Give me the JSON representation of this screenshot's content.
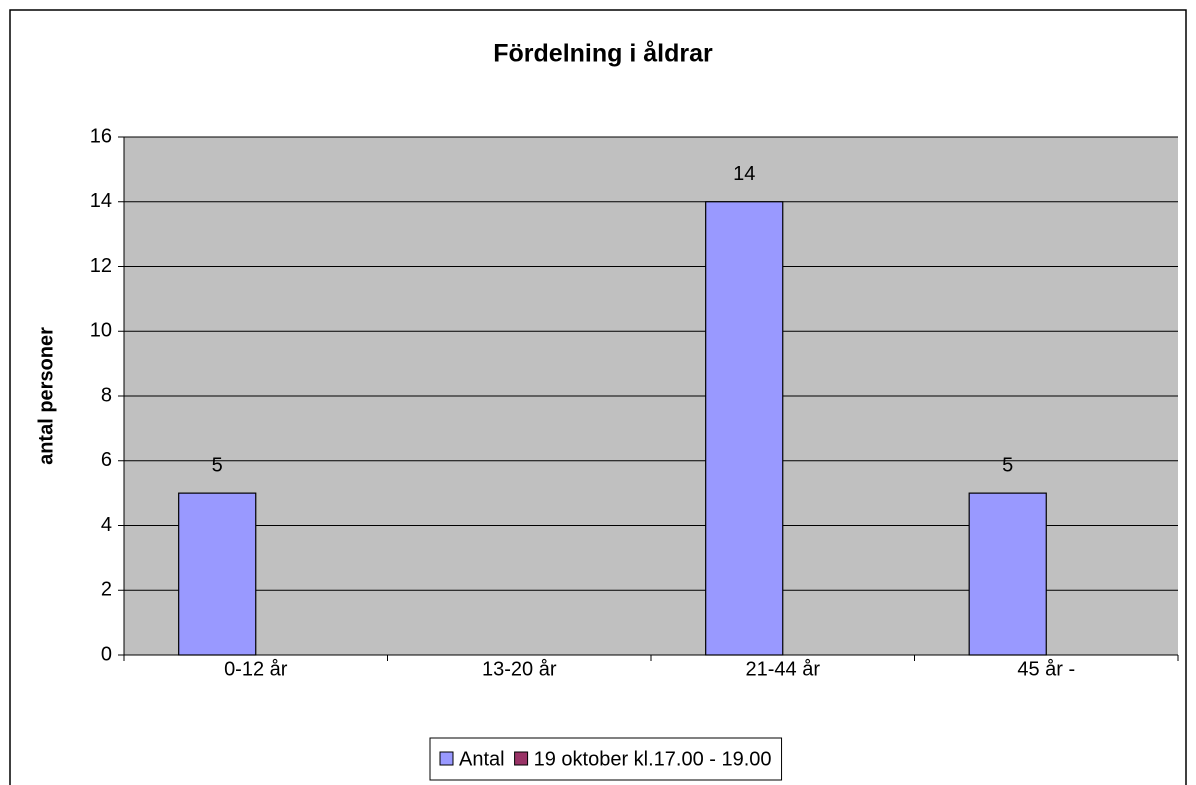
{
  "chart_data": {
    "type": "bar",
    "title": "Fördelning i åldrar",
    "y_label": "antal personer",
    "categories": [
      "0-12 år",
      "13-20 år",
      "21-44 år",
      "45 år -"
    ],
    "series": [
      {
        "name": "Antal",
        "color": "#9999ff",
        "values": [
          5,
          null,
          14,
          5
        ]
      },
      {
        "name": "19 oktober kl.17.00 - 19.00",
        "color": "#993366",
        "values": [
          null,
          null,
          null,
          null
        ]
      }
    ],
    "ylim": [
      0,
      16
    ],
    "yticks": [
      0,
      2,
      4,
      6,
      8,
      10,
      12,
      14,
      16
    ],
    "grid": true,
    "legend": "bottom"
  }
}
